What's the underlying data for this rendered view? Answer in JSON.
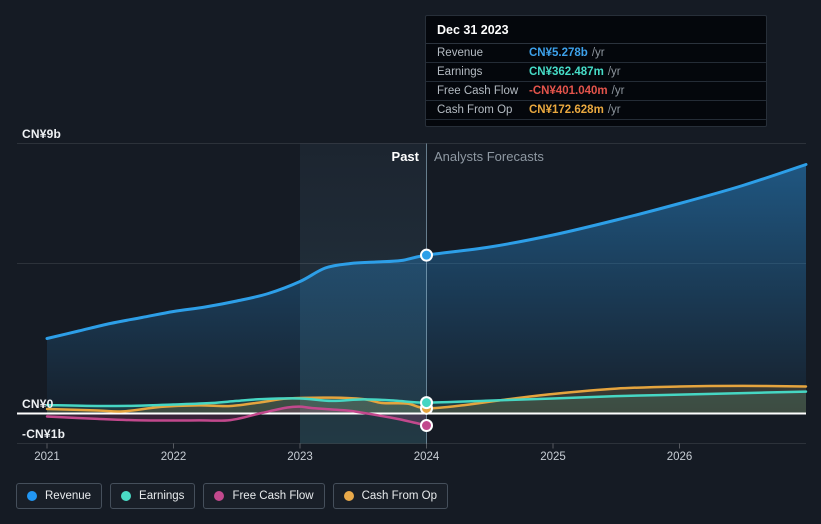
{
  "annotations": {
    "past": "Past",
    "forecast": "Analysts Forecasts"
  },
  "tooltip": {
    "date": "Dec 31 2023",
    "rows": [
      {
        "label": "Revenue",
        "value": "CN¥5.278b",
        "suffix": "/yr",
        "color": "#3da1ea"
      },
      {
        "label": "Earnings",
        "value": "CN¥362.487m",
        "suffix": "/yr",
        "color": "#46dcc7"
      },
      {
        "label": "Free Cash Flow",
        "value": "-CN¥401.040m",
        "suffix": "/yr",
        "color": "#e4544b"
      },
      {
        "label": "Cash From Op",
        "value": "CN¥172.628m",
        "suffix": "/yr",
        "color": "#e9a83f"
      }
    ]
  },
  "legend": [
    {
      "label": "Revenue",
      "color": "#2196f3"
    },
    {
      "label": "Earnings",
      "color": "#4adcc6"
    },
    {
      "label": "Free Cash Flow",
      "color": "#c2498d"
    },
    {
      "label": "Cash From Op",
      "color": "#e8a94a"
    }
  ],
  "chart_data": {
    "type": "line",
    "unit": "CN¥ billions per year",
    "currency_prefix": "CN¥",
    "x_axis": {
      "tick_labels": [
        "2021",
        "2022",
        "2023",
        "2024",
        "2025",
        "2026"
      ],
      "range_years": [
        2021,
        2027
      ]
    },
    "y_axis": {
      "tick_labels": [
        {
          "text": "CN¥9b",
          "value": 9
        },
        {
          "text": "CN¥0",
          "value": 0
        },
        {
          "text": "-CN¥1b",
          "value": -1
        }
      ],
      "unlabeled_gridline_value": 5,
      "ylim": [
        -1,
        9.3
      ],
      "grid": "horizontal-only"
    },
    "past_forecast_divider_year": 2024,
    "highlight_band_years": [
      2023,
      2024
    ],
    "marker_date": "Dec 31 2023",
    "markers_at_2024": {
      "Revenue": 5.278,
      "Earnings": 0.3625,
      "Free Cash Flow": -0.401,
      "Cash From Op": 0.1726
    },
    "series": [
      {
        "name": "Revenue",
        "color": "#2d9fe8",
        "points": [
          [
            2021,
            2.5
          ],
          [
            2021.25,
            2.75
          ],
          [
            2021.5,
            3.0
          ],
          [
            2021.75,
            3.2
          ],
          [
            2022,
            3.4
          ],
          [
            2022.25,
            3.55
          ],
          [
            2022.5,
            3.75
          ],
          [
            2022.75,
            4.0
          ],
          [
            2023,
            4.4
          ],
          [
            2023.2,
            4.85
          ],
          [
            2023.4,
            5.0
          ],
          [
            2023.6,
            5.05
          ],
          [
            2023.8,
            5.1
          ],
          [
            2024,
            5.278
          ],
          [
            2024.5,
            5.55
          ],
          [
            2025,
            5.95
          ],
          [
            2025.5,
            6.45
          ],
          [
            2026,
            7.0
          ],
          [
            2026.5,
            7.6
          ],
          [
            2027,
            8.3
          ]
        ]
      },
      {
        "name": "Earnings",
        "color": "#46d6c3",
        "points": [
          [
            2021,
            0.28
          ],
          [
            2021.4,
            0.25
          ],
          [
            2021.7,
            0.26
          ],
          [
            2022,
            0.3
          ],
          [
            2022.3,
            0.35
          ],
          [
            2022.5,
            0.42
          ],
          [
            2022.7,
            0.48
          ],
          [
            2023,
            0.5
          ],
          [
            2023.25,
            0.42
          ],
          [
            2023.5,
            0.47
          ],
          [
            2023.75,
            0.43
          ],
          [
            2024,
            0.3625
          ],
          [
            2024.5,
            0.43
          ],
          [
            2025,
            0.5
          ],
          [
            2025.5,
            0.58
          ],
          [
            2026,
            0.63
          ],
          [
            2026.5,
            0.68
          ],
          [
            2027,
            0.73
          ]
        ]
      },
      {
        "name": "Free Cash Flow",
        "color": "#c2498d",
        "points": [
          [
            2021,
            -0.1
          ],
          [
            2021.4,
            -0.18
          ],
          [
            2021.75,
            -0.23
          ],
          [
            2022.2,
            -0.23
          ],
          [
            2022.45,
            -0.22
          ],
          [
            2022.7,
            0.02
          ],
          [
            2022.9,
            0.2
          ],
          [
            2023,
            0.23
          ],
          [
            2023.1,
            0.18
          ],
          [
            2023.37,
            0.1
          ],
          [
            2023.5,
            0.02
          ],
          [
            2023.77,
            -0.18
          ],
          [
            2024,
            -0.401
          ]
        ]
      },
      {
        "name": "Cash From Op",
        "color": "#e5a43e",
        "points": [
          [
            2021,
            0.15
          ],
          [
            2021.4,
            0.1
          ],
          [
            2021.6,
            0.07
          ],
          [
            2021.9,
            0.22
          ],
          [
            2022.2,
            0.27
          ],
          [
            2022.45,
            0.25
          ],
          [
            2022.7,
            0.38
          ],
          [
            2022.9,
            0.5
          ],
          [
            2023.25,
            0.53
          ],
          [
            2023.5,
            0.48
          ],
          [
            2023.65,
            0.35
          ],
          [
            2023.85,
            0.33
          ],
          [
            2024,
            0.1726
          ],
          [
            2024.3,
            0.28
          ],
          [
            2024.6,
            0.45
          ],
          [
            2025,
            0.65
          ],
          [
            2025.5,
            0.83
          ],
          [
            2026,
            0.9
          ],
          [
            2026.5,
            0.92
          ],
          [
            2027,
            0.9
          ]
        ]
      }
    ]
  }
}
